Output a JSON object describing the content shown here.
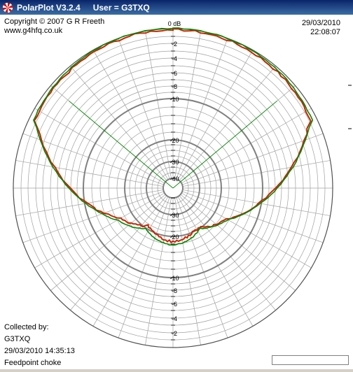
{
  "window": {
    "title": "PolarPlot V3.2.4",
    "user": "User = G3TXQ",
    "icon": "polar-plot-app-icon"
  },
  "header": {
    "copyright": "Copyright © 2007 G R Freeth",
    "website": "www.g4hfq.co.uk",
    "date": "29/03/2010",
    "time": "22:08:07"
  },
  "footer": {
    "collected_by_label": "Collected by:",
    "collector": "G3TXQ",
    "collected_datetime": "29/03/2010 14:35:13",
    "description": "Feedpoint choke"
  },
  "plot": {
    "ring_labels_top": [
      "0 dB",
      "-2",
      "-4",
      "-6",
      "-8",
      "-10",
      "-20",
      "-30",
      "-40"
    ],
    "ring_labels_bottom": [
      "-30",
      "-20",
      "-10",
      "-8",
      "-6",
      "-4",
      "-2"
    ],
    "ring_db_levels": [
      0,
      -2,
      -4,
      -6,
      -8,
      -10,
      -20,
      -30,
      -40
    ],
    "major_rings_db": [
      -10,
      -20,
      -30,
      -40
    ],
    "beamwidth_half_angle_deg": 50,
    "colors": {
      "grid": "#a0a0a0",
      "major_ring": "#808080",
      "trace_1": "#cc2200",
      "trace_2": "#008800",
      "beam_line": "#008800"
    }
  }
}
